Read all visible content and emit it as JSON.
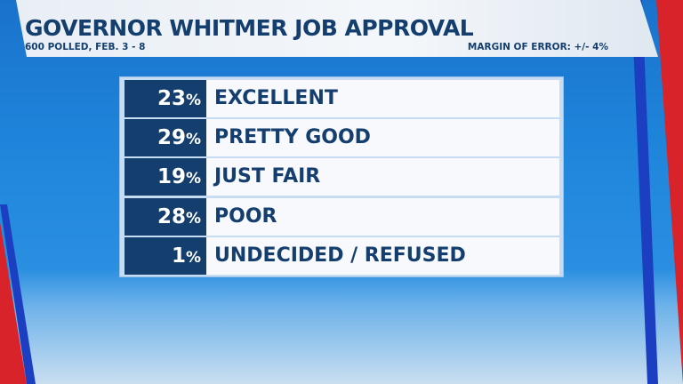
{
  "header": {
    "title": "GOVERNOR WHITMER JOB APPROVAL",
    "subtitle": "600 POLLED, FEB. 3 - 8",
    "margin_of_error": "MARGIN OF ERROR: +/- 4%"
  },
  "colors": {
    "navy": "#143e6e",
    "blue_bg": "#1f86dc",
    "red": "#d8232a"
  },
  "chart_data": {
    "type": "table",
    "title": "GOVERNOR WHITMER JOB APPROVAL",
    "categories": [
      "EXCELLENT",
      "PRETTY GOOD",
      "JUST FAIR",
      "POOR",
      "UNDECIDED / REFUSED"
    ],
    "values": [
      23,
      29,
      19,
      28,
      1
    ],
    "value_labels": [
      "23",
      "29",
      "19",
      "28",
      "1"
    ],
    "unit": "%"
  }
}
